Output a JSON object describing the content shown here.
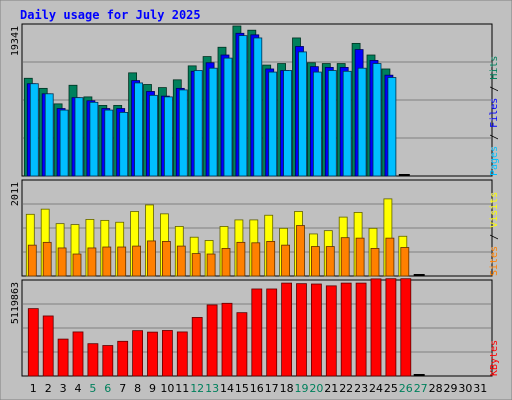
{
  "chart_data": {
    "type": "bar",
    "title": "Daily usage for July 2025",
    "categories": [
      "1",
      "2",
      "3",
      "4",
      "5",
      "6",
      "7",
      "8",
      "9",
      "10",
      "11",
      "12",
      "13",
      "14",
      "15",
      "16",
      "17",
      "18",
      "19",
      "20",
      "21",
      "22",
      "23",
      "24",
      "25",
      "26",
      "27",
      "28",
      "29",
      "30",
      "31"
    ],
    "weekend_days": [
      "5",
      "6",
      "12",
      "13",
      "19",
      "20",
      "26",
      "27"
    ],
    "panels": [
      {
        "id": "hits",
        "max_label": "19341",
        "ylim": [
          0,
          19341
        ],
        "side_label": [
          "Pages",
          "Files",
          "Hits"
        ],
        "series": [
          {
            "name": "Hits",
            "color": "#00805c",
            "values": [
              12600,
              11300,
              9300,
              11700,
              10200,
              9100,
              9100,
              13300,
              11800,
              11400,
              12400,
              14200,
              15400,
              16600,
              19341,
              18800,
              14300,
              14500,
              17800,
              14600,
              14500,
              14500,
              17100,
              15600,
              13800,
              0,
              0,
              0,
              0,
              0,
              0
            ]
          },
          {
            "name": "Files",
            "color": "#0000ff",
            "values": [
              11900,
              10600,
              8700,
              10100,
              9700,
              8700,
              8700,
              12300,
              10900,
              10300,
              11300,
              13500,
              14600,
              15600,
              18400,
              18200,
              13800,
              13600,
              16700,
              14100,
              14000,
              14000,
              16300,
              14900,
              13000,
              0,
              0,
              0,
              0,
              0,
              0
            ]
          },
          {
            "name": "Pages",
            "color": "#00bfff",
            "values": [
              11900,
              10600,
              8500,
              10100,
              9500,
              8500,
              8200,
              12000,
              10400,
              10200,
              11100,
              13600,
              13900,
              15200,
              18100,
              17800,
              13400,
              13600,
              16000,
              13400,
              13600,
              13500,
              13900,
              14500,
              12700,
              0,
              0,
              0,
              0,
              0,
              0
            ]
          }
        ]
      },
      {
        "id": "visits",
        "max_label": "2011",
        "ylim": [
          0,
          2011
        ],
        "side_label": [
          "Sites",
          "Visits"
        ],
        "series": [
          {
            "name": "Visits",
            "color": "#ffff00",
            "values": [
              1320,
              1430,
              1120,
              1100,
              1210,
              1190,
              1150,
              1380,
              1520,
              1330,
              1060,
              830,
              760,
              1060,
              1200,
              1200,
              1300,
              1020,
              1380,
              900,
              970,
              1260,
              1360,
              1020,
              1650,
              850,
              0,
              0,
              0,
              0,
              0
            ]
          },
          {
            "name": "Sites",
            "color": "#ff8000",
            "values": [
              660,
              720,
              600,
              470,
              600,
              620,
              620,
              640,
              750,
              740,
              640,
              480,
              470,
              590,
              720,
              710,
              740,
              660,
              1080,
              630,
              630,
              820,
              810,
              590,
              810,
              610,
              0,
              0,
              0,
              0,
              0
            ]
          }
        ]
      },
      {
        "id": "kbytes",
        "max_label": "5119863",
        "ylim": [
          0,
          5119863
        ],
        "side_label": [
          "KBytes"
        ],
        "series": [
          {
            "name": "KBytes",
            "color": "#ff0000",
            "values": [
              3670000,
              3270000,
              2010000,
              2400000,
              1760000,
              1660000,
              1890000,
              2470000,
              2390000,
              2480000,
              2400000,
              3190000,
              3870000,
              3960000,
              3450000,
              4740000,
              4740000,
              5060000,
              5030000,
              5010000,
              4910000,
              5060000,
              5060000,
              5290000,
              5300000,
              5300000,
              0,
              0,
              0,
              0,
              0
            ]
          }
        ]
      }
    ]
  }
}
